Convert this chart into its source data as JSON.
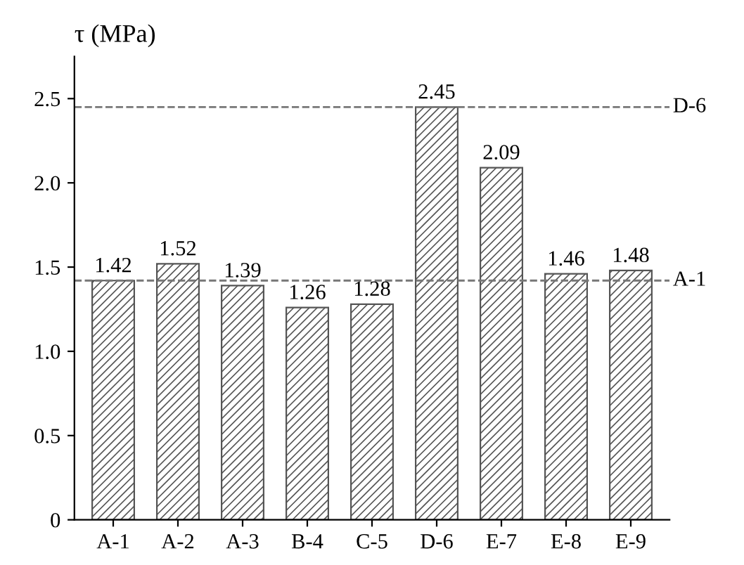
{
  "chart_data": {
    "type": "bar",
    "ylabel": "τ (MPa)",
    "categories": [
      "A-1",
      "A-2",
      "A-3",
      "B-4",
      "C-5",
      "D-6",
      "E-7",
      "E-8",
      "E-9"
    ],
    "values": [
      1.42,
      1.52,
      1.39,
      1.26,
      1.28,
      2.45,
      2.09,
      1.46,
      1.48
    ],
    "color": "#555555",
    "data_labels": true,
    "grid": false,
    "ylim": [
      0,
      2.75
    ],
    "yticks": [
      0,
      0.5,
      {
        "value": 1,
        "label": "1.0"
      },
      1.5,
      {
        "value": 2,
        "label": "2.0"
      },
      2.5
    ],
    "ref_lines": [
      {
        "axis": "y",
        "value": 2.45,
        "label": "D-6",
        "color": "#777777",
        "line_style": "dashed"
      },
      {
        "axis": "y",
        "value": 1.42,
        "label": "A-1",
        "color": "#777777",
        "line_style": "dashed"
      }
    ]
  }
}
